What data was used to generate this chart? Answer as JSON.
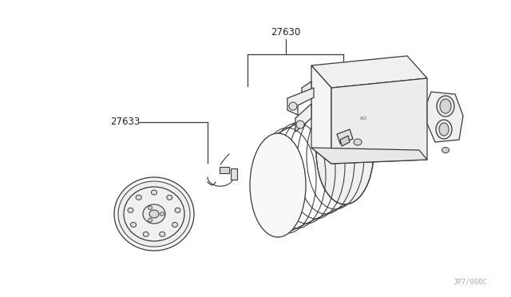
{
  "bg_color": "#ffffff",
  "lc": "#3a3a3a",
  "lw": 0.9,
  "label_color": "#222222",
  "part_label_27630": "27630",
  "part_label_27633": "27633",
  "watermark": "JP7/000C",
  "figsize": [
    6.4,
    3.72
  ],
  "dpi": 100
}
